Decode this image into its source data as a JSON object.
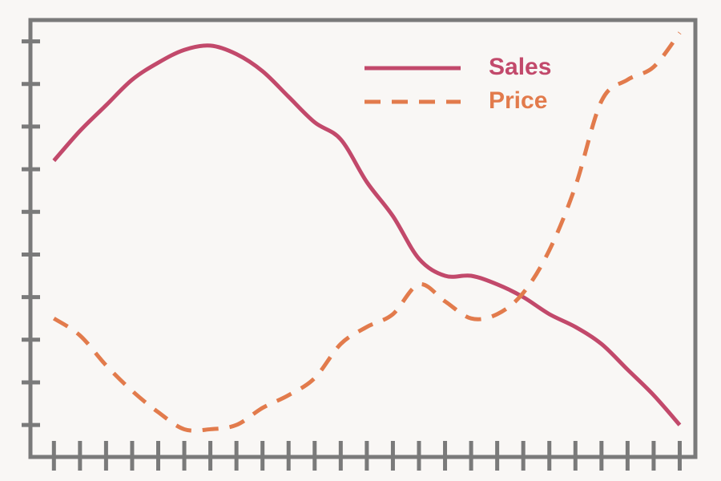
{
  "chart_data": {
    "type": "line",
    "x": [
      0,
      1,
      2,
      3,
      4,
      5,
      6,
      7,
      8,
      9,
      10,
      11,
      12,
      13,
      14,
      15,
      16,
      17,
      18,
      19,
      20,
      21,
      22,
      23,
      24
    ],
    "series": [
      {
        "name": "Sales",
        "color": "#c2496b",
        "dash": false,
        "values": [
          7.2,
          7.9,
          8.5,
          9.1,
          9.5,
          9.8,
          9.9,
          9.7,
          9.3,
          8.7,
          8.1,
          7.7,
          6.7,
          5.9,
          4.9,
          4.5,
          4.5,
          4.3,
          4.0,
          3.6,
          3.3,
          2.9,
          2.3,
          1.7,
          1.0
        ]
      },
      {
        "name": "Price",
        "color": "#e27b4c",
        "dash": true,
        "values": [
          3.5,
          3.1,
          2.4,
          1.8,
          1.3,
          0.9,
          0.9,
          1.0,
          1.4,
          1.7,
          2.1,
          2.9,
          3.3,
          3.6,
          4.3,
          3.9,
          3.5,
          3.6,
          4.1,
          5.1,
          6.6,
          8.6,
          9.1,
          9.4,
          10.2
        ]
      }
    ],
    "xlim": [
      -0.9,
      24.6
    ],
    "ylim": [
      0.25,
      10.5
    ],
    "xticks": [
      0,
      1,
      2,
      3,
      4,
      5,
      6,
      7,
      8,
      9,
      10,
      11,
      12,
      13,
      14,
      15,
      16,
      17,
      18,
      19,
      20,
      21,
      22,
      23,
      24
    ],
    "yticks": [
      1,
      2,
      3,
      4,
      5,
      6,
      7,
      8,
      9,
      10
    ],
    "legend": "top-right"
  }
}
